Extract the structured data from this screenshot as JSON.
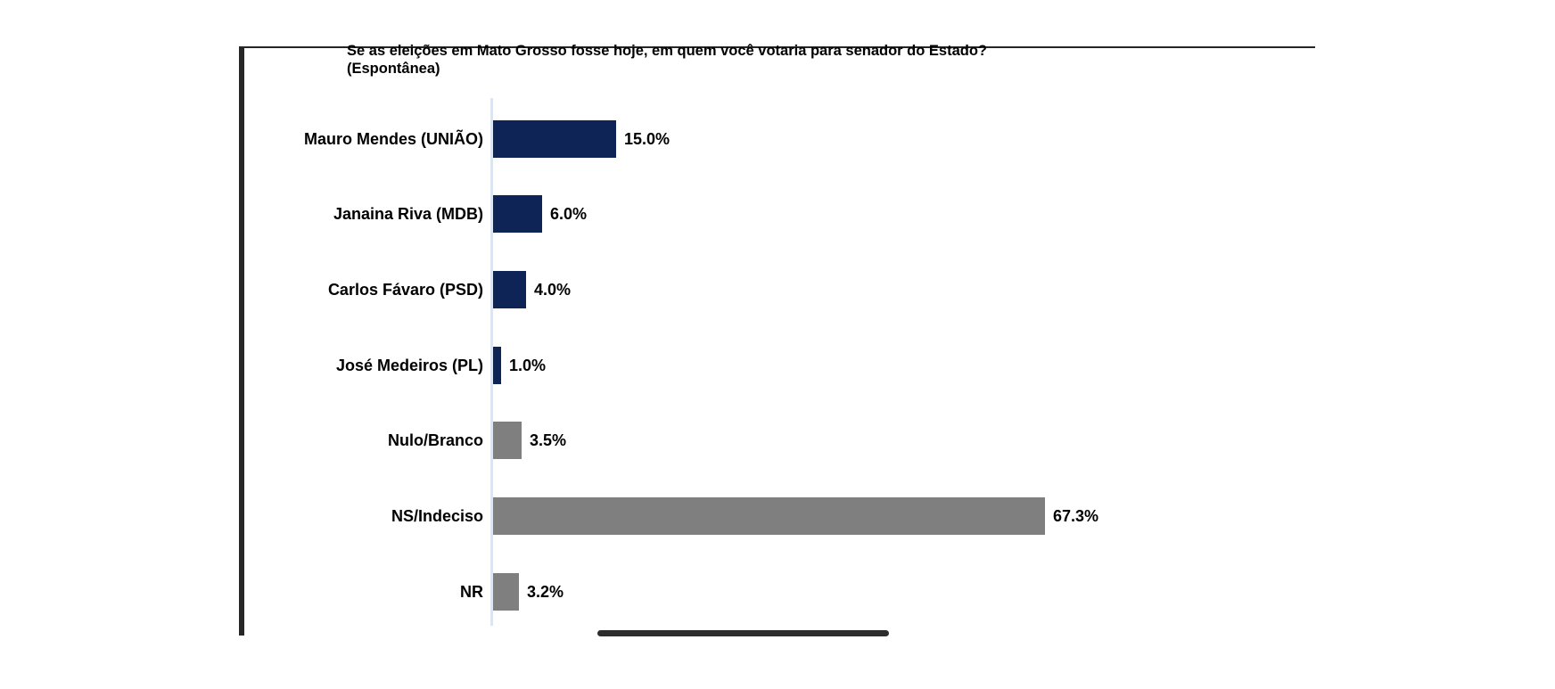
{
  "page": {
    "background": "#ffffff"
  },
  "frame": {
    "top_line_color": "#262626",
    "left_bar_color": "#262626",
    "bottom_bar_color": "#2d2d2d"
  },
  "chart_data": {
    "type": "bar",
    "orientation": "horizontal",
    "title": "Se as eleições em Mato Grosso fosse hoje, em quem você votaria para senador do Estado?\n(Espontânea)",
    "categories": [
      "Mauro Mendes (UNIÃO)",
      "Janaina Riva (MDB)",
      "Carlos Fávaro (PSD)",
      "José Medeiros (PL)",
      "Nulo/Branco",
      "NS/Indeciso",
      "NR"
    ],
    "values": [
      15.0,
      6.0,
      4.0,
      1.0,
      3.5,
      67.3,
      3.2
    ],
    "value_labels": [
      "15.0%",
      "6.0%",
      "4.0%",
      "1.0%",
      "3.5%",
      "67.3%",
      "3.2%"
    ],
    "bar_color_keys": [
      "navy",
      "navy",
      "navy",
      "navy",
      "gray",
      "gray",
      "gray"
    ],
    "colors": {
      "navy": "#0e2457",
      "gray": "#7f7f7f",
      "axis_line": "#dbe6f2",
      "text": "#000000"
    },
    "xlim": [
      0,
      100
    ],
    "grid": false,
    "legend": false,
    "value_axis_ticks_visible": false
  }
}
